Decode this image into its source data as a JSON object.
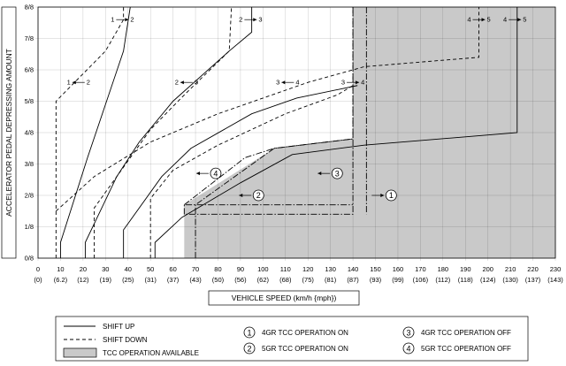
{
  "chart_data": {
    "type": "line",
    "xlabel": "VEHICLE SPEED (km/h {mph})",
    "ylabel": "ACCELERATOR PEDAL DEPRESSING AMOUNT",
    "xlim": [
      0,
      230
    ],
    "ylim": [
      0,
      8
    ],
    "x_ticks": [
      {
        "kmh": "0",
        "mph": "(0)"
      },
      {
        "kmh": "10",
        "mph": "(6.2)"
      },
      {
        "kmh": "20",
        "mph": "(12)"
      },
      {
        "kmh": "30",
        "mph": "(19)"
      },
      {
        "kmh": "40",
        "mph": "(25)"
      },
      {
        "kmh": "50",
        "mph": "(31)"
      },
      {
        "kmh": "60",
        "mph": "(37)"
      },
      {
        "kmh": "70",
        "mph": "(43)"
      },
      {
        "kmh": "80",
        "mph": "(50)"
      },
      {
        "kmh": "90",
        "mph": "(56)"
      },
      {
        "kmh": "100",
        "mph": "(62)"
      },
      {
        "kmh": "110",
        "mph": "(68)"
      },
      {
        "kmh": "120",
        "mph": "(75)"
      },
      {
        "kmh": "130",
        "mph": "(81)"
      },
      {
        "kmh": "140",
        "mph": "(87)"
      },
      {
        "kmh": "150",
        "mph": "(93)"
      },
      {
        "kmh": "160",
        "mph": "(99)"
      },
      {
        "kmh": "170",
        "mph": "(106)"
      },
      {
        "kmh": "180",
        "mph": "(112)"
      },
      {
        "kmh": "190",
        "mph": "(118)"
      },
      {
        "kmh": "200",
        "mph": "(124)"
      },
      {
        "kmh": "210",
        "mph": "(130)"
      },
      {
        "kmh": "220",
        "mph": "(137)"
      },
      {
        "kmh": "230",
        "mph": "(143)"
      }
    ],
    "y_ticks": [
      "0/8",
      "1/8",
      "2/8",
      "3/8",
      "4/8",
      "5/8",
      "6/8",
      "7/8",
      "8/8"
    ],
    "series": [
      {
        "name": "1→2",
        "style": "shift-up",
        "points": [
          [
            10,
            0
          ],
          [
            10,
            0.5
          ],
          [
            22,
            3.2
          ],
          [
            38,
            6.6
          ],
          [
            41,
            8
          ]
        ]
      },
      {
        "name": "2→3",
        "style": "shift-up",
        "points": [
          [
            21,
            0
          ],
          [
            21,
            0.5
          ],
          [
            35,
            2.6
          ],
          [
            45,
            3.7
          ],
          [
            60,
            5
          ],
          [
            85,
            6.6
          ],
          [
            95,
            7.2
          ],
          [
            95,
            8
          ]
        ]
      },
      {
        "name": "3→4",
        "style": "shift-up",
        "points": [
          [
            38,
            0
          ],
          [
            38,
            0.9
          ],
          [
            55,
            2.6
          ],
          [
            68,
            3.5
          ],
          [
            95,
            4.6
          ],
          [
            115,
            5.1
          ],
          [
            142,
            5.5
          ]
        ]
      },
      {
        "name": "4→5",
        "style": "shift-up",
        "points": [
          [
            52,
            0
          ],
          [
            52,
            0.5
          ],
          [
            64,
            1.3
          ],
          [
            90,
            2.4
          ],
          [
            113,
            3.3
          ],
          [
            145,
            3.6
          ],
          [
            213,
            4
          ],
          [
            213,
            8
          ]
        ]
      },
      {
        "name": "1←2",
        "style": "shift-down",
        "points": [
          [
            8,
            0
          ],
          [
            8,
            5
          ],
          [
            30,
            6.6
          ],
          [
            38,
            7.6
          ],
          [
            38,
            8
          ]
        ]
      },
      {
        "name": "2←3",
        "style": "shift-down",
        "points": [
          [
            25,
            0
          ],
          [
            25,
            1.6
          ],
          [
            35,
            2.6
          ],
          [
            50,
            4.1
          ],
          [
            65,
            5.2
          ],
          [
            85,
            6.6
          ],
          [
            86,
            8
          ]
        ]
      },
      {
        "name": "3←4",
        "style": "shift-down",
        "points": [
          [
            50,
            0
          ],
          [
            50,
            1.9
          ],
          [
            60,
            2.8
          ],
          [
            80,
            3.6
          ],
          [
            110,
            4.6
          ],
          [
            133,
            5.2
          ],
          [
            140,
            5.5
          ]
        ]
      },
      {
        "name": "4←5",
        "style": "shift-down",
        "points": [
          [
            8,
            1.5
          ],
          [
            25,
            2.6
          ],
          [
            50,
            3.7
          ],
          [
            80,
            4.6
          ],
          [
            120,
            5.6
          ],
          [
            145,
            6.1
          ],
          [
            196,
            6.4
          ],
          [
            196,
            8
          ]
        ]
      },
      {
        "name": "4GR TCC OPERATION ON",
        "style": "tcc",
        "points": [
          [
            140,
            8
          ],
          [
            140,
            1.4
          ],
          [
            65,
            1.4
          ],
          [
            65,
            1.7
          ],
          [
            140,
            1.7
          ]
        ]
      },
      {
        "name": "5GR TCC OPERATION ON",
        "style": "tcc",
        "points": [
          [
            146,
            8
          ],
          [
            146,
            1.4
          ]
        ]
      },
      {
        "name": "4GR TCC OPERATION OFF",
        "style": "tcc",
        "points": [
          [
            65,
            1.7
          ],
          [
            92,
            3.2
          ],
          [
            105,
            3.5
          ],
          [
            140,
            3.8
          ],
          [
            140,
            8
          ]
        ]
      },
      {
        "name": "5GR TCC OPERATION OFF",
        "style": "tcc",
        "points": [
          [
            70,
            0
          ],
          [
            70,
            1.7
          ],
          [
            105,
            3.5
          ],
          [
            140,
            3.8
          ]
        ]
      }
    ],
    "labels": [
      {
        "text": "1",
        "arrow": "right",
        "text2": "2",
        "x": 37.5,
        "y": 7.6
      },
      {
        "text": "2",
        "arrow": "right",
        "text2": "3",
        "x": 94.5,
        "y": 7.6
      },
      {
        "text": "4",
        "arrow": "right",
        "text2": "5",
        "x": 196,
        "y": 7.6
      },
      {
        "text": "4",
        "arrow": "right",
        "text2": "5",
        "x": 212,
        "y": 7.6
      },
      {
        "text": "1",
        "arrow": "left",
        "text2": "2",
        "x": 18,
        "y": 5.6
      },
      {
        "text": "2",
        "arrow": "left",
        "text2": "3",
        "x": 66,
        "y": 5.6
      },
      {
        "text": "3",
        "arrow": "left",
        "text2": "4",
        "x": 111,
        "y": 5.6
      },
      {
        "text": "3",
        "arrow": "right",
        "text2": "4",
        "x": 140,
        "y": 5.6
      }
    ],
    "tcc_region": [
      [
        65,
        0
      ],
      [
        65,
        1.7
      ],
      [
        105,
        3.5
      ],
      [
        140,
        3.8
      ],
      [
        140,
        8
      ],
      [
        230,
        8
      ],
      [
        230,
        0
      ]
    ],
    "markers": [
      {
        "id": "1",
        "x": 157,
        "y": 2.0,
        "arrow": "right"
      },
      {
        "id": "2",
        "x": 98,
        "y": 2.0,
        "arrow": "left"
      },
      {
        "id": "3",
        "x": 133,
        "y": 2.7,
        "arrow": "left"
      },
      {
        "id": "4",
        "x": 79,
        "y": 2.7,
        "arrow": "left"
      }
    ]
  },
  "legend": {
    "shift_up": "SHIFT UP",
    "shift_down": "SHIFT DOWN",
    "tcc_available": "TCC OPERATION AVAILABLE",
    "items": [
      {
        "num": "1",
        "text": "4GR TCC OPERATION ON"
      },
      {
        "num": "2",
        "text": "5GR TCC OPERATION ON"
      },
      {
        "num": "3",
        "text": "4GR TCC OPERATION OFF"
      },
      {
        "num": "4",
        "text": "5GR TCC OPERATION OFF"
      }
    ]
  },
  "colors": {
    "tcc_fill": "#c9c9c9",
    "line": "#000000"
  }
}
